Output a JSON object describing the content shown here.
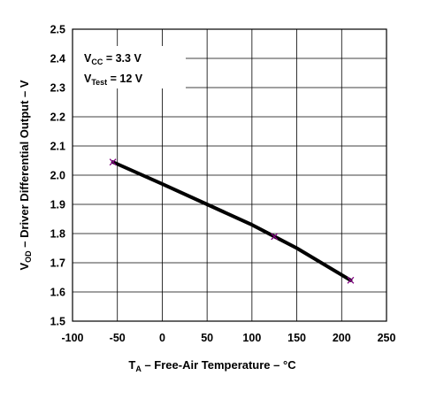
{
  "chart_data": {
    "type": "line",
    "title": "",
    "xlabel": {
      "main": "T",
      "sub": "A",
      "rest": " – Free-Air Temperature – °C"
    },
    "ylabel": {
      "main": "V",
      "sub": "OD",
      "rest": " – Driver Differential Output – V"
    },
    "xlim": [
      -100,
      250
    ],
    "ylim": [
      1.5,
      2.5
    ],
    "x_ticks": [
      "-100",
      "-50",
      "0",
      "50",
      "100",
      "150",
      "200",
      "250"
    ],
    "y_ticks": [
      "1.5",
      "1.6",
      "1.7",
      "1.8",
      "1.9",
      "2.0",
      "2.1",
      "2.2",
      "2.3",
      "2.4",
      "2.5"
    ],
    "grid": true,
    "series": [
      {
        "x": [
          -55,
          0,
          50,
          100,
          125,
          150,
          210
        ],
        "y": [
          2.045,
          1.97,
          1.9,
          1.83,
          1.79,
          1.75,
          1.64
        ],
        "color": "#000000",
        "markers": {
          "x": [
            -55,
            125,
            210
          ],
          "y": [
            2.045,
            1.79,
            1.64
          ],
          "color": "#800080",
          "shape": "x"
        }
      }
    ],
    "annotations": [
      {
        "main": "V",
        "sub": "CC",
        "rest": " = 3.3 V"
      },
      {
        "main": "V",
        "sub": "Test",
        "rest": " = 12 V"
      }
    ]
  }
}
